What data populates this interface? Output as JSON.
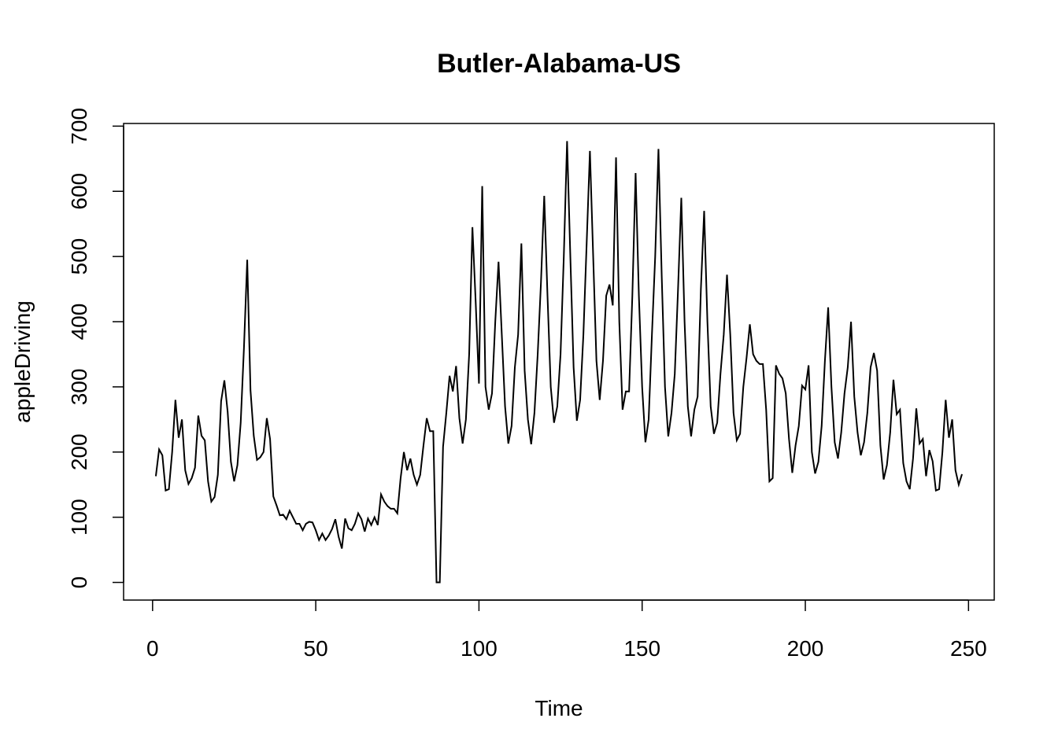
{
  "chart_data": {
    "type": "line",
    "title": "Butler-Alabama-US",
    "x_label": "Time",
    "y_label": "appleDriving",
    "x": [
      1,
      2,
      3,
      4,
      5,
      6,
      7,
      8,
      9,
      10,
      11,
      12,
      13,
      14,
      15,
      16,
      17,
      18,
      19,
      20,
      21,
      22,
      23,
      24,
      25,
      26,
      27,
      28,
      29,
      30,
      31,
      32,
      33,
      34,
      35,
      36,
      37,
      38,
      39,
      40,
      41,
      42,
      43,
      44,
      45,
      46,
      47,
      48,
      49,
      50,
      51,
      52,
      53,
      54,
      55,
      56,
      57,
      58,
      59,
      60,
      61,
      62,
      63,
      64,
      65,
      66,
      67,
      68,
      69,
      70,
      71,
      72,
      73,
      74,
      75,
      76,
      77,
      78,
      79,
      80,
      81,
      82,
      83,
      84,
      85,
      86,
      87,
      88,
      89,
      90,
      91,
      92,
      93,
      94,
      95,
      96,
      97,
      98,
      99,
      100,
      101,
      102,
      103,
      104,
      105,
      106,
      107,
      108,
      109,
      110,
      111,
      112,
      113,
      114,
      115,
      116,
      117,
      118,
      119,
      120,
      121,
      122,
      123,
      124,
      125,
      126,
      127,
      128,
      129,
      130,
      131,
      132,
      133,
      134,
      135,
      136,
      137,
      138,
      139,
      140,
      141,
      142,
      143,
      144,
      145,
      146,
      147,
      148,
      149,
      150,
      151,
      152,
      153,
      154,
      155,
      156,
      157,
      158,
      159,
      160,
      161,
      162,
      163,
      164,
      165,
      166,
      167,
      168,
      169,
      170,
      171,
      172,
      173,
      174,
      175,
      176,
      177,
      178,
      179,
      180,
      181,
      182,
      183,
      184,
      185,
      186,
      187,
      188,
      189,
      190,
      191,
      192,
      193,
      194,
      195,
      196,
      197,
      198,
      199,
      200,
      201,
      202,
      203,
      204,
      205,
      206,
      207,
      208,
      209,
      210,
      211,
      212,
      213,
      214,
      215,
      216,
      217,
      218,
      219,
      220,
      221,
      222,
      223,
      224,
      225,
      226,
      227,
      228,
      229,
      230,
      231,
      232,
      233,
      234,
      235,
      236,
      237,
      238,
      239,
      240,
      241,
      242,
      243,
      244,
      245,
      246,
      247,
      248
    ],
    "series": [
      {
        "name": "appleDriving",
        "color": "#000000",
        "values": [
          163,
          204,
          195,
          141,
          143,
          200,
          280,
          222,
          250,
          172,
          151,
          160,
          176,
          256,
          225,
          218,
          155,
          124,
          131,
          165,
          278,
          310,
          262,
          185,
          155,
          180,
          245,
          360,
          495,
          295,
          225,
          188,
          192,
          200,
          252,
          220,
          132,
          118,
          103,
          104,
          97,
          110,
          100,
          90,
          90,
          80,
          90,
          93,
          92,
          80,
          65,
          75,
          65,
          72,
          82,
          97,
          70,
          52,
          98,
          83,
          80,
          90,
          106,
          97,
          78,
          98,
          88,
          100,
          88,
          135,
          124,
          117,
          113,
          113,
          106,
          160,
          200,
          172,
          190,
          165,
          150,
          165,
          210,
          252,
          232,
          232,
          0,
          0,
          208,
          260,
          317,
          293,
          332,
          252,
          213,
          250,
          350,
          545,
          430,
          305,
          608,
          300,
          265,
          290,
          400,
          492,
          380,
          270,
          213,
          240,
          330,
          380,
          520,
          325,
          250,
          212,
          260,
          350,
          460,
          593,
          440,
          300,
          245,
          270,
          350,
          500,
          677,
          500,
          330,
          248,
          280,
          380,
          520,
          662,
          500,
          340,
          280,
          340,
          440,
          457,
          425,
          652,
          400,
          265,
          293,
          293,
          440,
          628,
          440,
          300,
          215,
          250,
          380,
          500,
          665,
          470,
          300,
          224,
          260,
          320,
          450,
          590,
          400,
          270,
          224,
          265,
          285,
          450,
          570,
          400,
          270,
          228,
          245,
          320,
          380,
          472,
          380,
          260,
          218,
          228,
          300,
          345,
          396,
          350,
          340,
          335,
          335,
          265,
          155,
          160,
          333,
          320,
          313,
          290,
          220,
          168,
          210,
          240,
          302,
          296,
          333,
          200,
          167,
          185,
          240,
          340,
          422,
          300,
          215,
          190,
          230,
          290,
          330,
          400,
          285,
          230,
          195,
          215,
          260,
          330,
          352,
          325,
          210,
          158,
          180,
          230,
          311,
          258,
          265,
          183,
          155,
          143,
          190,
          267,
          213,
          220,
          163,
          203,
          186,
          141,
          143,
          200,
          280,
          222,
          250,
          172,
          150,
          166
        ]
      }
    ],
    "xlim": [
      -8.88,
      257.88
    ],
    "ylim": [
      -27.08,
      704.08
    ],
    "xticks": [
      0,
      50,
      100,
      150,
      200,
      250
    ],
    "yticks": [
      0,
      100,
      200,
      300,
      400,
      500,
      600,
      700
    ]
  }
}
